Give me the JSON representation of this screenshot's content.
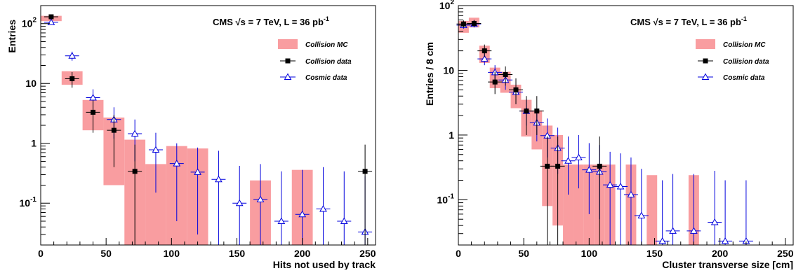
{
  "colors": {
    "mc_fill": "#f99da0",
    "collision_data": "#000000",
    "cosmic_data": "#0000dd",
    "frame": "#000000"
  },
  "chart_data": [
    {
      "type": "histogram-errorbars",
      "title": "",
      "annotation": {
        "pre": "CMS ",
        "sqrt": "s",
        "mid": " = 7 TeV, L = 36 pb",
        "sup": "-1"
      },
      "xlabel": "Hits not used by track",
      "ylabel": "Entries",
      "xlim": [
        0,
        256
      ],
      "ylim": [
        0.02,
        200
      ],
      "y_scale": "log",
      "x_ticks": [
        0,
        50,
        100,
        150,
        200,
        250
      ],
      "y_ticks": [
        {
          "v": 0.1,
          "base": "10",
          "exp": "-1"
        },
        {
          "v": 1,
          "base": "1",
          "exp": ""
        },
        {
          "v": 10,
          "base": "10",
          "exp": ""
        },
        {
          "v": 100,
          "base": "10",
          "exp": "2"
        }
      ],
      "legend": {
        "position": "top-right",
        "entries": [
          "Collision MC",
          "Collision data",
          "Cosmic data"
        ]
      },
      "mc_bins": [
        {
          "x0": 0,
          "x1": 16,
          "lo": 110,
          "hi": 135
        },
        {
          "x0": 16,
          "x1": 32,
          "lo": 9.5,
          "hi": 16
        },
        {
          "x0": 32,
          "x1": 48,
          "lo": 1.65,
          "hi": 5.3
        },
        {
          "x0": 48,
          "x1": 64,
          "lo": 0.2,
          "hi": 2.7
        },
        {
          "x0": 64,
          "x1": 80,
          "lo": 0.02,
          "hi": 1.15
        },
        {
          "x0": 80,
          "x1": 96,
          "lo": 0.02,
          "hi": 0.45
        },
        {
          "x0": 96,
          "x1": 112,
          "lo": 0.02,
          "hi": 0.9
        },
        {
          "x0": 112,
          "x1": 128,
          "lo": 0.02,
          "hi": 0.82
        },
        {
          "x0": 160,
          "x1": 176,
          "lo": 0.02,
          "hi": 0.24
        },
        {
          "x0": 192,
          "x1": 208,
          "lo": 0.02,
          "hi": 0.36
        }
      ],
      "collision_data": [
        {
          "x": 8,
          "y": 130,
          "lo": 118,
          "hi": 142
        },
        {
          "x": 24,
          "y": 12,
          "lo": 8.5,
          "hi": 15.5
        },
        {
          "x": 40,
          "y": 3.3,
          "lo": 1.5,
          "hi": 5.2
        },
        {
          "x": 56,
          "y": 1.65,
          "lo": 0.4,
          "hi": 3.0
        },
        {
          "x": 72,
          "y": 0.34,
          "lo": 0.02,
          "hi": 0.95
        },
        {
          "x": 248,
          "y": 0.34,
          "lo": 0.02,
          "hi": 0.95
        }
      ],
      "cosmic_data": [
        {
          "x": 8,
          "y": 105,
          "lo": 95,
          "hi": 116
        },
        {
          "x": 24,
          "y": 29,
          "lo": 24,
          "hi": 34
        },
        {
          "x": 40,
          "y": 5.8,
          "lo": 3.6,
          "hi": 8
        },
        {
          "x": 56,
          "y": 2.5,
          "lo": 1.2,
          "hi": 4
        },
        {
          "x": 72,
          "y": 1.45,
          "lo": 0.5,
          "hi": 2.5
        },
        {
          "x": 88,
          "y": 0.78,
          "lo": 0.15,
          "hi": 1.5
        },
        {
          "x": 104,
          "y": 0.46,
          "lo": 0.05,
          "hi": 1.0
        },
        {
          "x": 120,
          "y": 0.33,
          "lo": 0.03,
          "hi": 0.85
        },
        {
          "x": 136,
          "y": 0.25,
          "lo": 0.02,
          "hi": 0.75
        },
        {
          "x": 152,
          "y": 0.1,
          "lo": 0.02,
          "hi": 0.42
        },
        {
          "x": 168,
          "y": 0.115,
          "lo": 0.02,
          "hi": 0.45
        },
        {
          "x": 184,
          "y": 0.05,
          "lo": 0.02,
          "hi": 0.34
        },
        {
          "x": 200,
          "y": 0.065,
          "lo": 0.02,
          "hi": 0.36
        },
        {
          "x": 216,
          "y": 0.08,
          "lo": 0.02,
          "hi": 0.4
        },
        {
          "x": 232,
          "y": 0.05,
          "lo": 0.02,
          "hi": 0.34
        },
        {
          "x": 248,
          "y": 0.033,
          "lo": 0.02,
          "hi": 0.28
        }
      ]
    },
    {
      "type": "histogram-errorbars",
      "title": "",
      "annotation": {
        "pre": "CMS ",
        "sqrt": "s",
        "mid": " = 7 TeV, L = 36 pb",
        "sup": "-1"
      },
      "xlabel": "Cluster transverse size [cm]",
      "ylabel": "Entries / 8 cm",
      "xlim": [
        0,
        256
      ],
      "ylim": [
        0.02,
        100
      ],
      "y_scale": "log",
      "x_ticks": [
        0,
        50,
        100,
        150,
        200,
        250
      ],
      "y_ticks": [
        {
          "v": 0.1,
          "base": "10",
          "exp": "-1"
        },
        {
          "v": 1,
          "base": "1",
          "exp": ""
        },
        {
          "v": 10,
          "base": "10",
          "exp": ""
        },
        {
          "v": 100,
          "base": "10",
          "exp": "2"
        }
      ],
      "legend": {
        "position": "top-right",
        "entries": [
          "Collision MC",
          "Collision data",
          "Cosmic data"
        ]
      },
      "mc_bins": [
        {
          "x0": 0,
          "x1": 8,
          "lo": 38,
          "hi": 58
        },
        {
          "x0": 8,
          "x1": 16,
          "lo": 46,
          "hi": 65
        },
        {
          "x0": 16,
          "x1": 24,
          "lo": 13,
          "hi": 24
        },
        {
          "x0": 24,
          "x1": 32,
          "lo": 5.3,
          "hi": 11
        },
        {
          "x0": 32,
          "x1": 40,
          "lo": 4.5,
          "hi": 9.5
        },
        {
          "x0": 40,
          "x1": 48,
          "lo": 2.6,
          "hi": 6
        },
        {
          "x0": 48,
          "x1": 56,
          "lo": 0.95,
          "hi": 3.5
        },
        {
          "x0": 56,
          "x1": 64,
          "lo": 0.6,
          "hi": 2.4
        },
        {
          "x0": 64,
          "x1": 72,
          "lo": 0.08,
          "hi": 1.4
        },
        {
          "x0": 72,
          "x1": 80,
          "lo": 0.04,
          "hi": 1.0
        },
        {
          "x0": 80,
          "x1": 88,
          "lo": 0.02,
          "hi": 0.35
        },
        {
          "x0": 88,
          "x1": 96,
          "lo": 0.02,
          "hi": 0.35
        },
        {
          "x0": 96,
          "x1": 104,
          "lo": 0.02,
          "hi": 0.35
        },
        {
          "x0": 104,
          "x1": 112,
          "lo": 0.02,
          "hi": 0.35
        },
        {
          "x0": 112,
          "x1": 120,
          "lo": 0.02,
          "hi": 0.35
        },
        {
          "x0": 128,
          "x1": 136,
          "lo": 0.02,
          "hi": 0.35
        },
        {
          "x0": 144,
          "x1": 152,
          "lo": 0.02,
          "hi": 0.24
        },
        {
          "x0": 176,
          "x1": 184,
          "lo": 0.02,
          "hi": 0.24
        }
      ],
      "collision_data": [
        {
          "x": 4,
          "y": 52,
          "lo": 46,
          "hi": 59
        },
        {
          "x": 12,
          "y": 53,
          "lo": 47,
          "hi": 60
        },
        {
          "x": 20,
          "y": 20,
          "lo": 16,
          "hi": 25
        },
        {
          "x": 28,
          "y": 6.6,
          "lo": 4.3,
          "hi": 9.5
        },
        {
          "x": 36,
          "y": 8.6,
          "lo": 5.8,
          "hi": 11.5
        },
        {
          "x": 44,
          "y": 5,
          "lo": 3.0,
          "hi": 7.5
        },
        {
          "x": 52,
          "y": 2.35,
          "lo": 1.0,
          "hi": 4.0
        },
        {
          "x": 60,
          "y": 2.35,
          "lo": 1.0,
          "hi": 4.0
        },
        {
          "x": 68,
          "y": 0.33,
          "lo": 0.02,
          "hi": 0.95
        },
        {
          "x": 76,
          "y": 0.33,
          "lo": 0.02,
          "hi": 0.95
        },
        {
          "x": 108,
          "y": 0.33,
          "lo": 0.02,
          "hi": 0.95
        }
      ],
      "cosmic_data": [
        {
          "x": 4,
          "y": 50,
          "lo": 44,
          "hi": 57
        },
        {
          "x": 12,
          "y": 52,
          "lo": 46,
          "hi": 59
        },
        {
          "x": 20,
          "y": 15,
          "lo": 12,
          "hi": 19
        },
        {
          "x": 28,
          "y": 9.3,
          "lo": 7,
          "hi": 12
        },
        {
          "x": 36,
          "y": 7.1,
          "lo": 5,
          "hi": 9.5
        },
        {
          "x": 44,
          "y": 4.6,
          "lo": 3,
          "hi": 6.5
        },
        {
          "x": 52,
          "y": 2.35,
          "lo": 1.4,
          "hi": 3.6
        },
        {
          "x": 60,
          "y": 1.55,
          "lo": 0.8,
          "hi": 2.6
        },
        {
          "x": 68,
          "y": 0.98,
          "lo": 0.45,
          "hi": 1.8
        },
        {
          "x": 76,
          "y": 0.63,
          "lo": 0.25,
          "hi": 1.3
        },
        {
          "x": 84,
          "y": 0.4,
          "lo": 0.12,
          "hi": 0.95
        },
        {
          "x": 92,
          "y": 0.45,
          "lo": 0.15,
          "hi": 1.0
        },
        {
          "x": 100,
          "y": 0.29,
          "lo": 0.06,
          "hi": 0.75
        },
        {
          "x": 108,
          "y": 0.27,
          "lo": 0.05,
          "hi": 0.7
        },
        {
          "x": 116,
          "y": 0.17,
          "lo": 0.02,
          "hi": 0.55
        },
        {
          "x": 124,
          "y": 0.16,
          "lo": 0.02,
          "hi": 0.52
        },
        {
          "x": 132,
          "y": 0.12,
          "lo": 0.02,
          "hi": 0.45
        },
        {
          "x": 140,
          "y": 0.057,
          "lo": 0.02,
          "hi": 0.3
        },
        {
          "x": 156,
          "y": 0.023,
          "lo": 0.02,
          "hi": 0.2
        },
        {
          "x": 164,
          "y": 0.033,
          "lo": 0.02,
          "hi": 0.25
        },
        {
          "x": 180,
          "y": 0.033,
          "lo": 0.02,
          "hi": 0.25
        },
        {
          "x": 196,
          "y": 0.045,
          "lo": 0.02,
          "hi": 0.28
        },
        {
          "x": 204,
          "y": 0.023,
          "lo": 0.02,
          "hi": 0.2
        },
        {
          "x": 220,
          "y": 0.023,
          "lo": 0.02,
          "hi": 0.2
        }
      ]
    }
  ]
}
